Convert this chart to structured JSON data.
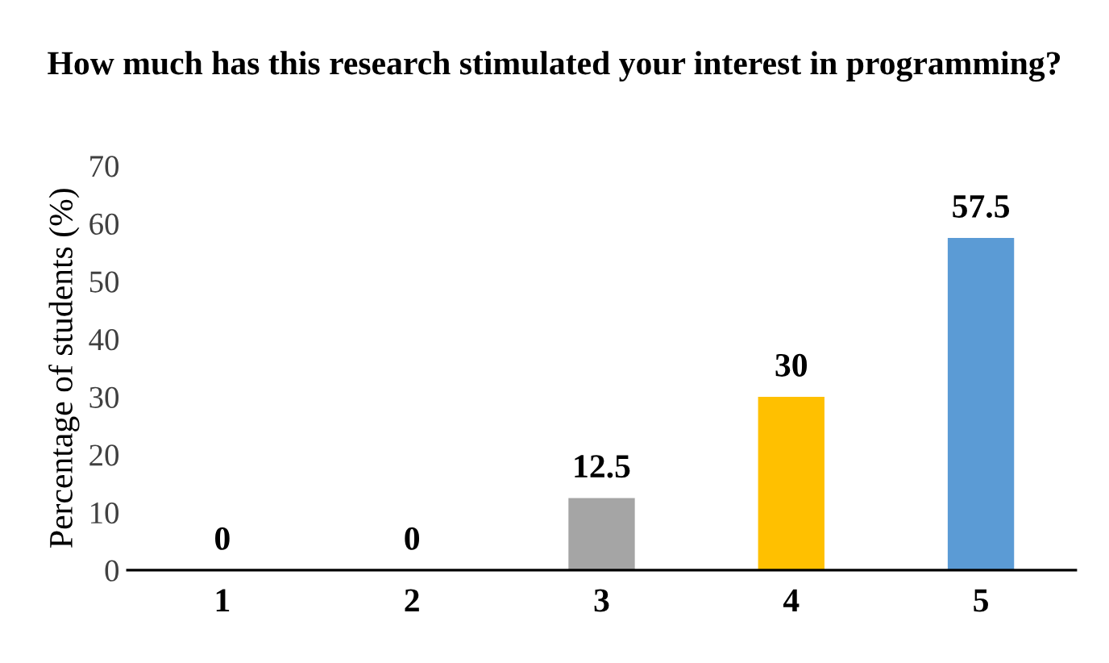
{
  "chart_data": {
    "type": "bar",
    "title": "How much has this research stimulated your interest in programming?",
    "ylabel": "Percentage of students (%)",
    "categories": [
      "1",
      "2",
      "3",
      "4",
      "5"
    ],
    "values": [
      0,
      0,
      12.5,
      30,
      57.5
    ],
    "colors": [
      "#5b9bd5",
      "#ed7d31",
      "#a5a5a5",
      "#ffc000",
      "#5b9bd5"
    ],
    "ylim": [
      0,
      70
    ],
    "yticks": [
      0,
      10,
      20,
      30,
      40,
      50,
      60,
      70
    ],
    "grid": false,
    "legend": false,
    "data_labels": true
  }
}
